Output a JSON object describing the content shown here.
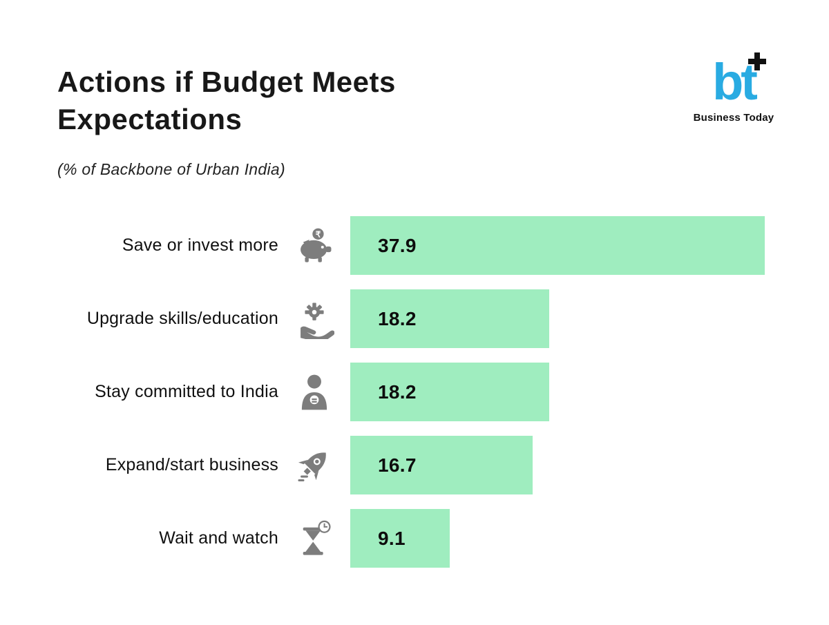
{
  "header": {
    "title": "Actions if Budget Meets Expectations",
    "subtitle": "(% of Backbone of Urban India)",
    "logo": {
      "mark": "bt",
      "caption": "Business Today",
      "brand_color": "#29abe2"
    }
  },
  "chart_data": {
    "type": "bar",
    "orientation": "horizontal",
    "title": "Actions if Budget Meets Expectations",
    "subtitle": "(% of Backbone of Urban India)",
    "categories": [
      "Save or invest more",
      "Upgrade skills/education",
      "Stay committed to India",
      "Expand/start business",
      "Wait and watch"
    ],
    "values": [
      37.9,
      18.2,
      18.2,
      16.7,
      9.1
    ],
    "icons": [
      "piggy-bank-icon",
      "skills-gear-hand-icon",
      "person-icon",
      "rocket-icon",
      "hourglass-clock-icon"
    ],
    "bar_color": "#9fedbf",
    "icon_color": "#7d7d7d",
    "xlim": [
      0,
      37.9
    ],
    "grid": false,
    "legend": false,
    "value_labels": "inside-start"
  }
}
